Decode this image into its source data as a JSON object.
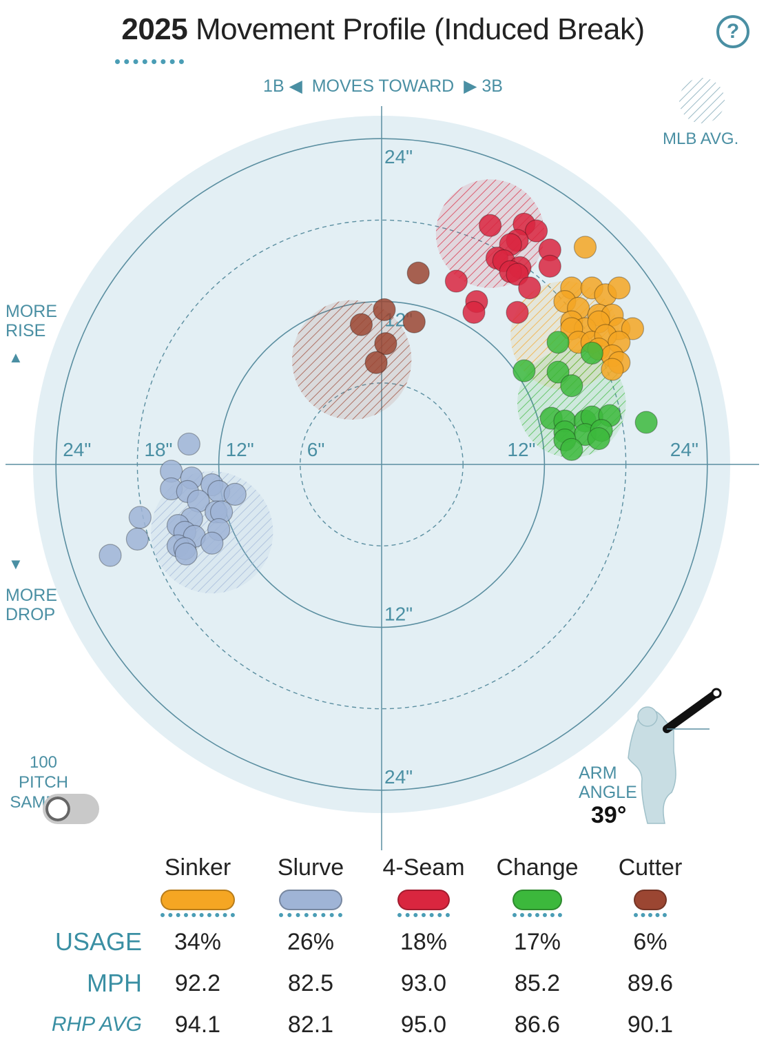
{
  "header": {
    "year": "2025",
    "title": "Movement Profile (Induced Break)",
    "help_label": "?"
  },
  "direction": {
    "left": "1B",
    "middle": "MOVES TOWARD",
    "right": "3B"
  },
  "side_labels": {
    "rise": [
      "MORE",
      "RISE"
    ],
    "drop": [
      "MORE",
      "DROP"
    ],
    "mlb_avg": "MLB AVG."
  },
  "sample_toggle": {
    "label_line1": "100 PITCH",
    "label_line2": "SAMPLE",
    "state": "off"
  },
  "arm_angle": {
    "label_line1": "ARM",
    "label_line2": "ANGLE",
    "value": "39°",
    "degrees": 39
  },
  "colors": {
    "sinker": "#f5a623",
    "slurve": "#9fb4d6",
    "fourseam": "#d9263f",
    "change": "#3cb83c",
    "cutter": "#9b4632",
    "field": "#e3eff4",
    "ring": "#5a8ea0",
    "accent": "#4a8fa3"
  },
  "chart_data": {
    "type": "scatter",
    "title": "2025 Movement Profile (Induced Break)",
    "xlabel": "MOVES TOWARD (1B ◀ ▶ 3B)",
    "ylabel": "MORE RISE ▲ / ▼ MORE DROP",
    "axis_range": [
      -26,
      26
    ],
    "rings": [
      6,
      12,
      18,
      24
    ],
    "ring_tick_labels": {
      "left": [
        "24\"",
        "18\"",
        "12\"",
        "6\""
      ],
      "right": [
        "12\"",
        "24\""
      ],
      "top": [
        "24\"",
        "12\""
      ],
      "bottom": [
        "12\"",
        "24\""
      ]
    },
    "series": [
      {
        "name": "Sinker",
        "color": "#f5a623",
        "mlb_avg": {
          "x": 13.5,
          "y": 9.5,
          "r": 4
        },
        "points": [
          [
            15,
            16
          ],
          [
            14,
            13
          ],
          [
            15.5,
            13
          ],
          [
            16.5,
            12.5
          ],
          [
            17.5,
            13
          ],
          [
            13.5,
            12
          ],
          [
            14.5,
            11.5
          ],
          [
            16,
            11
          ],
          [
            17,
            11
          ],
          [
            14,
            10.5
          ],
          [
            15,
            10
          ],
          [
            16,
            10.5
          ],
          [
            17.5,
            10
          ],
          [
            14,
            10
          ],
          [
            18.5,
            10
          ],
          [
            14.5,
            9
          ],
          [
            15.5,
            9
          ],
          [
            16.5,
            9.5
          ],
          [
            17.5,
            9
          ],
          [
            16,
            8.5
          ],
          [
            17,
            8
          ],
          [
            17.5,
            7.5
          ],
          [
            17,
            7
          ]
        ]
      },
      {
        "name": "Slurve",
        "color": "#9fb4d6",
        "mlb_avg": {
          "x": -12.5,
          "y": -5,
          "r": 4.5
        },
        "points": [
          [
            -14.2,
            1.5
          ],
          [
            -15.5,
            -0.5
          ],
          [
            -14,
            -1
          ],
          [
            -12.5,
            -1.5
          ],
          [
            -15.5,
            -1.8
          ],
          [
            -14.3,
            -2
          ],
          [
            -12,
            -2
          ],
          [
            -10.8,
            -2.2
          ],
          [
            -13.5,
            -2.7
          ],
          [
            -12.2,
            -3.5
          ],
          [
            -11.8,
            -3.5
          ],
          [
            -14,
            -4
          ],
          [
            -17.8,
            -3.9
          ],
          [
            -15,
            -4.5
          ],
          [
            -12,
            -4.8
          ],
          [
            -14.5,
            -5
          ],
          [
            -13.8,
            -5.3
          ],
          [
            -15,
            -6
          ],
          [
            -14.5,
            -6.2
          ],
          [
            -12.5,
            -5.8
          ],
          [
            -18,
            -5.5
          ],
          [
            -20,
            -6.7
          ],
          [
            -14.4,
            -6.6
          ]
        ]
      },
      {
        "name": "4-Seam",
        "color": "#d9263f",
        "mlb_avg": {
          "x": 8,
          "y": 17,
          "r": 4
        },
        "points": [
          [
            8,
            17.6
          ],
          [
            10.5,
            17.7
          ],
          [
            11.4,
            17.2
          ],
          [
            10,
            16.5
          ],
          [
            9.5,
            16.2
          ],
          [
            12.4,
            15.8
          ],
          [
            8.5,
            15.2
          ],
          [
            9,
            15
          ],
          [
            10.2,
            14.5
          ],
          [
            12.4,
            14.6
          ],
          [
            9.5,
            14.2
          ],
          [
            10,
            14
          ],
          [
            5.5,
            13.5
          ],
          [
            10.9,
            13
          ],
          [
            7,
            12
          ],
          [
            6.8,
            11.2
          ],
          [
            10,
            11.2
          ]
        ]
      },
      {
        "name": "Change",
        "color": "#3cb83c",
        "mlb_avg": {
          "x": 14,
          "y": 4.5,
          "r": 4
        },
        "points": [
          [
            13,
            9
          ],
          [
            15.5,
            8.2
          ],
          [
            10.5,
            6.9
          ],
          [
            13,
            6.8
          ],
          [
            14,
            5.8
          ],
          [
            12.5,
            3.4
          ],
          [
            13.5,
            3.2
          ],
          [
            15,
            3.2
          ],
          [
            15.5,
            3.5
          ],
          [
            16.8,
            3.6
          ],
          [
            19.5,
            3.1
          ],
          [
            13.5,
            2.4
          ],
          [
            15,
            2.2
          ],
          [
            16.2,
            2.5
          ],
          [
            13.5,
            1.8
          ],
          [
            16,
            1.9
          ],
          [
            14,
            1.1
          ]
        ]
      },
      {
        "name": "Cutter",
        "color": "#9b4632",
        "mlb_avg": {
          "x": -2.2,
          "y": 7.7,
          "r": 4.4
        },
        "points": [
          [
            2.7,
            14.1
          ],
          [
            0.2,
            11.4
          ],
          [
            2.4,
            10.5
          ],
          [
            -1.5,
            10.3
          ],
          [
            0.3,
            8.9
          ],
          [
            -0.4,
            7.5
          ]
        ]
      }
    ],
    "table": {
      "columns": [
        "Sinker",
        "Slurve",
        "4-Seam",
        "Change",
        "Cutter"
      ],
      "rows": [
        {
          "label": "USAGE",
          "values": [
            "34%",
            "26%",
            "18%",
            "17%",
            "6%"
          ]
        },
        {
          "label": "MPH",
          "values": [
            "92.2",
            "82.5",
            "93.0",
            "85.2",
            "89.6"
          ]
        },
        {
          "label": "RHP AVG",
          "values": [
            "94.1",
            "82.1",
            "95.0",
            "86.6",
            "90.1"
          ]
        }
      ]
    }
  }
}
